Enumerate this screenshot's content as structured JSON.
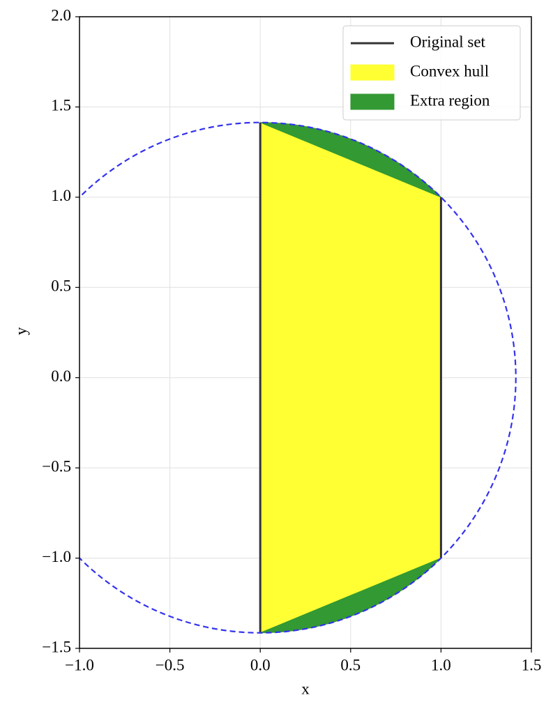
{
  "chart_data": {
    "type": "region",
    "xlabel": "x",
    "ylabel": "y",
    "xlim": [
      -1.0,
      1.5
    ],
    "ylim": [
      -1.5,
      2.0
    ],
    "xticks": [
      {
        "value": -1.0,
        "label": "−1.0"
      },
      {
        "value": -0.5,
        "label": "−0.5"
      },
      {
        "value": 0.0,
        "label": "0.0"
      },
      {
        "value": 0.5,
        "label": "0.5"
      },
      {
        "value": 1.0,
        "label": "1.0"
      },
      {
        "value": 1.5,
        "label": "1.5"
      }
    ],
    "yticks": [
      {
        "value": -1.5,
        "label": "−1.5"
      },
      {
        "value": -1.0,
        "label": "−1.0"
      },
      {
        "value": -0.5,
        "label": "−0.5"
      },
      {
        "value": 0.0,
        "label": "0.0"
      },
      {
        "value": 0.5,
        "label": "0.5"
      },
      {
        "value": 1.0,
        "label": "1.0"
      },
      {
        "value": 1.5,
        "label": "1.5"
      },
      {
        "value": 2.0,
        "label": "2.0"
      }
    ],
    "grid": true,
    "legend": "upper right",
    "circle": {
      "center": [
        0,
        0
      ],
      "radius": 1.414,
      "color": "#3333ee",
      "dashed": true
    },
    "series": [
      {
        "name": "Convex hull",
        "kind": "polygon",
        "color": "#ffff33",
        "x": [
          0,
          0,
          1,
          1
        ],
        "y": [
          -1.414,
          1.414,
          1,
          -1
        ]
      },
      {
        "name": "Extra region",
        "kind": "segment",
        "color": "#339933",
        "x": [
          0,
          1,
          null,
          1,
          0
        ],
        "y": [
          1.414,
          1,
          null,
          -1,
          -1.414
        ]
      },
      {
        "name": "Original set",
        "kind": "line",
        "color": "#333333",
        "x": [
          0,
          0,
          null,
          1,
          1
        ],
        "y": [
          -1.414,
          1.414,
          null,
          -1,
          1
        ]
      }
    ],
    "legend_order": [
      2,
      0,
      1
    ]
  }
}
